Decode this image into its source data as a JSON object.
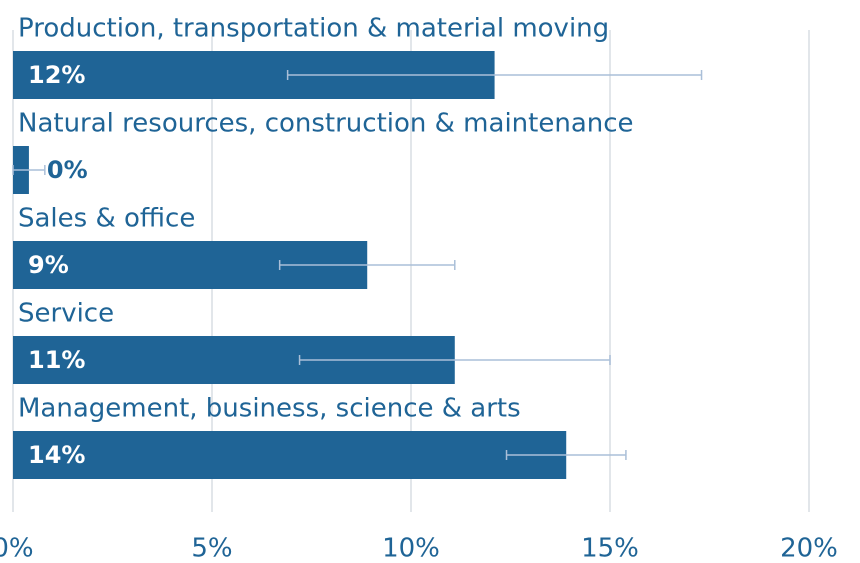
{
  "chart_data": {
    "type": "hbar",
    "categories": [
      "Production, transportation & material moving",
      "Natural resources, construction & maintenance",
      "Sales & office",
      "Service",
      "Management, business, science & arts"
    ],
    "values": [
      12.1,
      0.4,
      8.9,
      11.1,
      13.9
    ],
    "value_labels": [
      "12%",
      "0%",
      "9%",
      "11%",
      "14%"
    ],
    "errors": [
      5.2,
      0.4,
      2.2,
      3.9,
      1.5
    ],
    "color": "#1f6496",
    "error_color": "#aabfd8",
    "xlim": [
      0,
      20
    ],
    "xticks": [
      {
        "value": 0,
        "label": "0%"
      },
      {
        "value": 5,
        "label": "5%"
      },
      {
        "value": 10,
        "label": "10%"
      },
      {
        "value": 15,
        "label": "15%"
      },
      {
        "value": 20,
        "label": "20%"
      }
    ],
    "grid": true
  }
}
